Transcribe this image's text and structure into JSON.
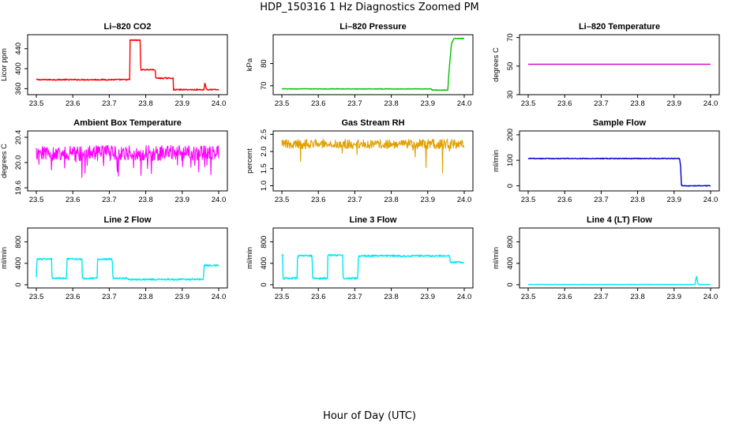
{
  "figure": {
    "title": "HDP_150316  1 Hz Diagnostics Zoomed PM",
    "xlabel": "Hour of Day (UTC)"
  },
  "chart_data": [
    {
      "type": "line",
      "title": "Li–820 CO2",
      "ylabel": "Licor ppm",
      "xlim": [
        23.5,
        24.0
      ],
      "ylim": [
        348,
        468
      ],
      "x_ticks": [
        23.5,
        23.6,
        23.7,
        23.8,
        23.9,
        24.0
      ],
      "y_ticks": [
        360,
        400,
        440
      ],
      "color": "#ff0000",
      "noise": 1.2,
      "series": [
        {
          "x": [
            23.5,
            23.756,
            23.757,
            23.785,
            23.786,
            23.826,
            23.827,
            23.875,
            23.876,
            23.96,
            23.962,
            23.966,
            23.968,
            24.0
          ],
          "values": [
            378,
            378,
            457,
            457,
            398,
            398,
            381,
            381,
            358,
            358,
            372,
            360,
            358,
            358
          ]
        }
      ]
    },
    {
      "type": "line",
      "title": "Li–820 Pressure",
      "ylabel": "kPa",
      "xlim": [
        23.5,
        24.0
      ],
      "ylim": [
        66,
        93
      ],
      "x_ticks": [
        23.5,
        23.6,
        23.7,
        23.8,
        23.9,
        24.0
      ],
      "y_ticks": [
        70,
        80
      ],
      "color": "#00c000",
      "noise": 0.12,
      "series": [
        {
          "x": [
            23.5,
            23.91,
            23.912,
            23.955,
            23.958,
            23.965,
            23.972,
            24.0
          ],
          "values": [
            68.6,
            68.6,
            68.1,
            68.1,
            76,
            89,
            91.3,
            91.3
          ]
        }
      ]
    },
    {
      "type": "line",
      "title": "Li–820 Temperature",
      "ylabel": "degrees C",
      "xlim": [
        23.5,
        24.0
      ],
      "ylim": [
        30,
        72
      ],
      "x_ticks": [
        23.5,
        23.6,
        23.7,
        23.8,
        23.9,
        24.0
      ],
      "y_ticks": [
        30,
        50,
        70
      ],
      "color": "#d000d0",
      "noise": 0,
      "series": [
        {
          "x": [
            23.5,
            24.0
          ],
          "values": [
            51.3,
            51.3
          ]
        }
      ]
    },
    {
      "type": "line",
      "title": "Ambient Box Temperature",
      "ylabel": "degrees C",
      "xlim": [
        23.5,
        24.0
      ],
      "ylim": [
        19.55,
        20.5
      ],
      "x_ticks": [
        23.5,
        23.6,
        23.7,
        23.8,
        23.9,
        24.0
      ],
      "y_ticks": [
        19.6,
        20.0,
        20.4
      ],
      "color": "#ff00ff",
      "noise": 0.12,
      "spikes": {
        "down": 0.35,
        "rate": 0.08
      },
      "series": [
        {
          "x": [
            23.5,
            24.0
          ],
          "values": [
            20.15,
            20.15
          ]
        }
      ]
    },
    {
      "type": "line",
      "title": "Gas Stream RH",
      "ylabel": "percent",
      "xlim": [
        23.5,
        24.0
      ],
      "ylim": [
        0.85,
        2.6
      ],
      "x_ticks": [
        23.5,
        23.6,
        23.7,
        23.8,
        23.9,
        24.0
      ],
      "y_ticks": [
        1.0,
        1.5,
        2.0,
        2.5
      ],
      "color": "#e0a000",
      "noise": 0.14,
      "spikes": {
        "down": 1.1,
        "rate": 0.025
      },
      "series": [
        {
          "x": [
            23.5,
            24.0
          ],
          "values": [
            2.22,
            2.22
          ]
        }
      ]
    },
    {
      "type": "line",
      "title": "Sample Flow",
      "ylabel": "ml/min",
      "xlim": [
        23.5,
        24.0
      ],
      "ylim": [
        -20,
        215
      ],
      "x_ticks": [
        23.5,
        23.6,
        23.7,
        23.8,
        23.9,
        24.0
      ],
      "y_ticks": [
        0,
        100,
        200
      ],
      "color": "#0000d0",
      "noise": 1.5,
      "series": [
        {
          "x": [
            23.5,
            23.915,
            23.918,
            23.92,
            23.925,
            24.0
          ],
          "values": [
            107,
            107,
            75,
            2,
            0,
            0
          ]
        }
      ]
    },
    {
      "type": "line",
      "title": "Line 2 Flow",
      "ylabel": "ml/min",
      "xlim": [
        23.5,
        24.0
      ],
      "ylim": [
        -60,
        1060
      ],
      "x_ticks": [
        23.5,
        23.6,
        23.7,
        23.8,
        23.9,
        24.0
      ],
      "y_ticks": [
        0,
        400,
        800
      ],
      "color": "#00e8f0",
      "noise": 14,
      "series": [
        {
          "x": [
            23.5,
            23.502,
            23.542,
            23.543,
            23.583,
            23.584,
            23.625,
            23.626,
            23.667,
            23.668,
            23.708,
            23.71,
            23.75,
            23.752,
            23.958,
            23.96,
            24.0
          ],
          "values": [
            150,
            480,
            480,
            120,
            120,
            480,
            480,
            120,
            120,
            480,
            480,
            120,
            120,
            100,
            100,
            360,
            360
          ]
        }
      ]
    },
    {
      "type": "line",
      "title": "Line 3 Flow",
      "ylabel": "ml/min",
      "xlim": [
        23.5,
        24.0
      ],
      "ylim": [
        -60,
        1060
      ],
      "x_ticks": [
        23.5,
        23.6,
        23.7,
        23.8,
        23.9,
        24.0
      ],
      "y_ticks": [
        0,
        400,
        800
      ],
      "color": "#00e8f0",
      "noise": 16,
      "series": [
        {
          "x": [
            23.5,
            23.502,
            23.503,
            23.508,
            23.542,
            23.543,
            23.583,
            23.584,
            23.625,
            23.626,
            23.667,
            23.668,
            23.708,
            23.71,
            23.96,
            23.962,
            24.0
          ],
          "values": [
            550,
            550,
            120,
            120,
            120,
            540,
            540,
            120,
            120,
            550,
            550,
            120,
            120,
            540,
            540,
            420,
            420
          ]
        }
      ]
    },
    {
      "type": "line",
      "title": "Line 4 (LT) Flow",
      "ylabel": "ml/min",
      "xlim": [
        23.5,
        24.0
      ],
      "ylim": [
        -60,
        1060
      ],
      "x_ticks": [
        23.5,
        23.6,
        23.7,
        23.8,
        23.9,
        24.0
      ],
      "y_ticks": [
        0,
        400,
        800
      ],
      "color": "#00e8f0",
      "noise": 3,
      "series": [
        {
          "x": [
            23.5,
            23.958,
            23.959,
            23.962,
            23.964,
            23.966,
            24.0
          ],
          "values": [
            5,
            5,
            90,
            160,
            60,
            5,
            5
          ]
        }
      ]
    }
  ]
}
